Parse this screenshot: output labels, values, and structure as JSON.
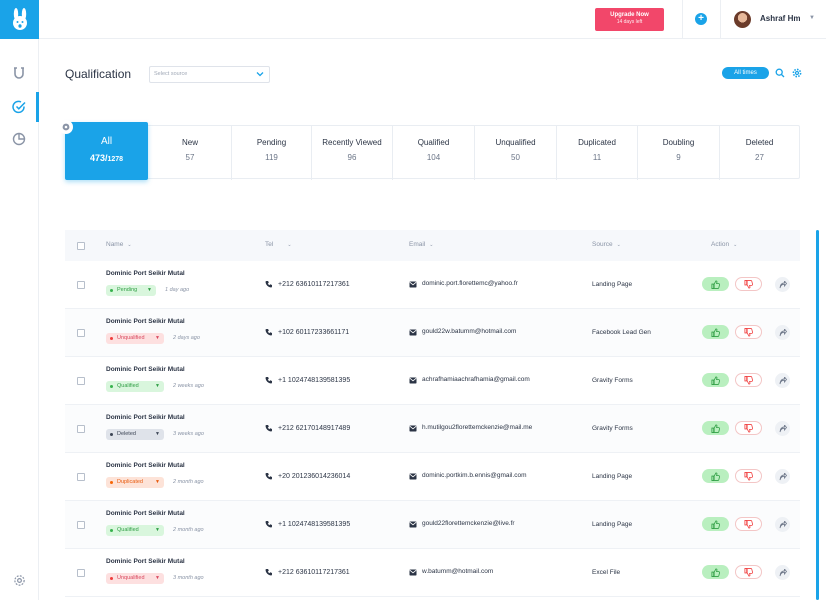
{
  "header": {
    "upgrade_title": "Upgrade Now",
    "upgrade_sub": "14 days left",
    "user_name": "Ashraf Hm"
  },
  "page": {
    "title": "Qualification",
    "source_placeholder": "Select source",
    "time_filter": "All times"
  },
  "stats": [
    {
      "label": "All",
      "value": "473/",
      "total": "1278"
    },
    {
      "label": "New",
      "value": "57"
    },
    {
      "label": "Pending",
      "value": "119"
    },
    {
      "label": "Recently Viewed",
      "value": "96"
    },
    {
      "label": "Qualified",
      "value": "104"
    },
    {
      "label": "Unqualified",
      "value": "50"
    },
    {
      "label": "Duplicated",
      "value": "11"
    },
    {
      "label": "Doubling",
      "value": "9"
    },
    {
      "label": "Deleted",
      "value": "27"
    }
  ],
  "table": {
    "columns": [
      "Name",
      "Tel",
      "Email",
      "Source",
      "Action"
    ],
    "rows": [
      {
        "name": "Dominic Port Seikir Mutal",
        "status": "Pending",
        "ago": "1 day ago",
        "tel": "+212 63610117217361",
        "email": "dominic.port.florettemc@yahoo.fr",
        "source": "Landing Page"
      },
      {
        "name": "Dominic Port Seikir Mutal",
        "status": "Unqualified",
        "ago": "2 days ago",
        "tel": "+102 60117233661171",
        "email": "gould22w.batumm@hotmail.com",
        "source": "Facebook Lead Gen"
      },
      {
        "name": "Dominic Port Seikir Mutal",
        "status": "Qualified",
        "ago": "2 weeks ago",
        "tel": "+1 1024748139581395",
        "email": "achrafhamiaachrafhamia@gmail.com",
        "source": "Gravity Forms"
      },
      {
        "name": "Dominic Port Seikir Mutal",
        "status": "Deleted",
        "ago": "3 weeks ago",
        "tel": "+212 62170148917489",
        "email": "h.mutilgou2florettemckenzie@mail.me",
        "source": "Gravity Forms"
      },
      {
        "name": "Dominic Port Seikir Mutal",
        "status": "Duplicated",
        "ago": "2 month ago",
        "tel": "+20 201236014236014",
        "email": "dominic.portkim.b.ennis@gmail.com",
        "source": "Landing Page"
      },
      {
        "name": "Dominic Port Seikir Mutal",
        "status": "Qualified",
        "ago": "2 month ago",
        "tel": "+1 1024748139581395",
        "email": "gould22florettemckenzie@live.fr",
        "source": "Landing Page"
      },
      {
        "name": "Dominic Port Seikir Mutal",
        "status": "Unqualified",
        "ago": "3 month ago",
        "tel": "+212 63610117217361",
        "email": "w.batumm@hotmail.com",
        "source": "Excel File"
      }
    ]
  },
  "status_colors": {
    "Pending": {
      "bg": "#d9f6dd",
      "fg": "#2f9e44",
      "dot": "#37b24d"
    },
    "Unqualified": {
      "bg": "#fde0e0",
      "fg": "#d9485f",
      "dot": "#f03e3e"
    },
    "Qualified": {
      "bg": "#d9f6dd",
      "fg": "#2f9e44",
      "dot": "#37b24d"
    },
    "Deleted": {
      "bg": "#dfe3ea",
      "fg": "#3d4656",
      "dot": "#3d4656"
    },
    "Duplicated": {
      "bg": "#fde3d8",
      "fg": "#e8590c",
      "dot": "#f76707"
    }
  },
  "icons": {
    "logo": "rabbit-logo-icon",
    "nav": [
      "magnet-icon",
      "check-circle-icon",
      "pie-chart-icon",
      "settings-icon"
    ],
    "row_actions": [
      "thumbs-up-icon",
      "thumbs-down-icon",
      "share-icon"
    ]
  },
  "colors": {
    "accent": "#1aa3e8",
    "upgrade": "#f2476a"
  }
}
